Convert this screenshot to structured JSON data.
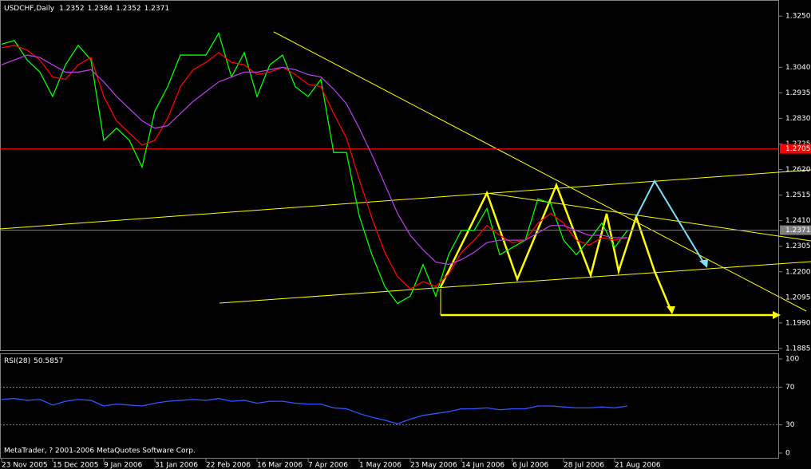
{
  "chart_data": [
    {
      "type": "line",
      "symbol": "USDCHF,Daily",
      "ohlc": [
        1.2352,
        1.2384,
        1.2352,
        1.2371
      ],
      "categories": [
        "23 Nov 2005",
        null,
        null,
        null,
        "15 Dec 2005",
        null,
        null,
        null,
        "9 Jan 2006",
        null,
        null,
        null,
        "31 Jan 2006",
        null,
        null,
        null,
        "22 Feb 2006",
        null,
        null,
        null,
        "16 Mar 2006",
        null,
        null,
        null,
        "7 Apr 2006",
        null,
        null,
        null,
        "1 May 2006",
        null,
        null,
        null,
        "23 May 2006",
        null,
        null,
        null,
        "14 Jun 2006",
        null,
        null,
        null,
        "6 Jul 2006",
        null,
        null,
        null,
        "28 Jul 2006",
        null,
        null,
        null,
        "21 Aug 2006",
        null
      ],
      "series": [
        {
          "color": "#00ff00",
          "values": [
            1.3135,
            1.315,
            1.307,
            1.302,
            1.292,
            1.305,
            1.313,
            1.307,
            1.274,
            1.279,
            1.274,
            1.263,
            1.286,
            1.296,
            1.309,
            1.309,
            1.309,
            1.318,
            1.3,
            1.31,
            1.292,
            1.305,
            1.309,
            1.296,
            1.292,
            1.299,
            1.269,
            1.269,
            1.243,
            1.227,
            1.214,
            1.207,
            1.21,
            1.223,
            1.21,
            1.227,
            1.237,
            1.237,
            1.246,
            1.227,
            1.23,
            1.233,
            1.25,
            1.248,
            1.233,
            1.227,
            1.233,
            1.24,
            1.23,
            1.237
          ]
        },
        {
          "color": "#ff0000",
          "values": [
            1.312,
            1.313,
            1.311,
            1.307,
            1.3,
            1.299,
            1.305,
            1.308,
            1.292,
            1.282,
            1.277,
            1.272,
            1.274,
            1.283,
            1.296,
            1.303,
            1.306,
            1.31,
            1.306,
            1.305,
            1.301,
            1.302,
            1.304,
            1.301,
            1.297,
            1.296,
            1.285,
            1.275,
            1.258,
            1.242,
            1.228,
            1.218,
            1.213,
            1.216,
            1.214,
            1.219,
            1.228,
            1.233,
            1.239,
            1.235,
            1.232,
            1.233,
            1.24,
            1.244,
            1.24,
            1.233,
            1.231,
            1.234,
            1.233,
            1.234
          ]
        },
        {
          "color": "#b040e0",
          "values": [
            1.305,
            1.307,
            1.309,
            1.308,
            1.305,
            1.302,
            1.302,
            1.303,
            1.298,
            1.292,
            1.287,
            1.282,
            1.279,
            1.28,
            1.285,
            1.29,
            1.294,
            1.298,
            1.3,
            1.302,
            1.302,
            1.303,
            1.304,
            1.303,
            1.301,
            1.3,
            1.295,
            1.289,
            1.279,
            1.268,
            1.256,
            1.244,
            1.235,
            1.229,
            1.224,
            1.223,
            1.225,
            1.228,
            1.232,
            1.233,
            1.233,
            1.233,
            1.236,
            1.239,
            1.239,
            1.237,
            1.235,
            1.235,
            1.234,
            1.234
          ]
        }
      ],
      "levels": [
        {
          "value": 1.2705,
          "color": "#ff0000"
        },
        {
          "value": 1.2371,
          "color": "#808080"
        }
      ],
      "ylim": [
        1.1875,
        1.329
      ],
      "yticks": [
        {
          "value": 1.325,
          "label": "1.3250"
        },
        {
          "value": 1.304,
          "label": "1.3040"
        },
        {
          "value": 1.2935,
          "label": "1.2935"
        },
        {
          "value": 1.283,
          "label": "1.2830"
        },
        {
          "value": 1.2725,
          "label": "1.2725"
        },
        {
          "value": 1.262,
          "label": "1.2620"
        },
        {
          "value": 1.2515,
          "label": "1.2515"
        },
        {
          "value": 1.241,
          "label": "1.2410"
        },
        {
          "value": 1.2305,
          "label": "1.2305"
        },
        {
          "value": 1.22,
          "label": "1.2200"
        },
        {
          "value": 1.2095,
          "label": "1.2095"
        },
        {
          "value": 1.199,
          "label": "1.1990"
        },
        {
          "value": 1.1885,
          "label": "1.1885"
        }
      ]
    },
    {
      "type": "line",
      "name": "RSI(28)",
      "last": 50.5857,
      "series": [
        {
          "color": "#3355ff",
          "values": [
            57,
            58,
            56,
            57,
            51,
            55,
            57,
            56,
            50,
            52,
            51,
            50,
            53,
            55,
            56,
            57,
            56,
            58,
            55,
            56,
            53,
            55,
            55,
            53,
            52,
            52,
            48,
            47,
            42,
            38,
            35,
            31,
            36,
            40,
            42,
            44,
            47,
            47,
            48,
            46,
            47,
            47,
            50,
            50,
            49,
            48,
            48,
            49,
            48,
            50
          ]
        }
      ],
      "ylim": [
        0,
        100
      ],
      "yticks": [
        100,
        70,
        30,
        0
      ],
      "levels": [
        70,
        30
      ]
    }
  ],
  "footer": "MetaTrader, ? 2001-2006 MetaQuotes Software Corp."
}
